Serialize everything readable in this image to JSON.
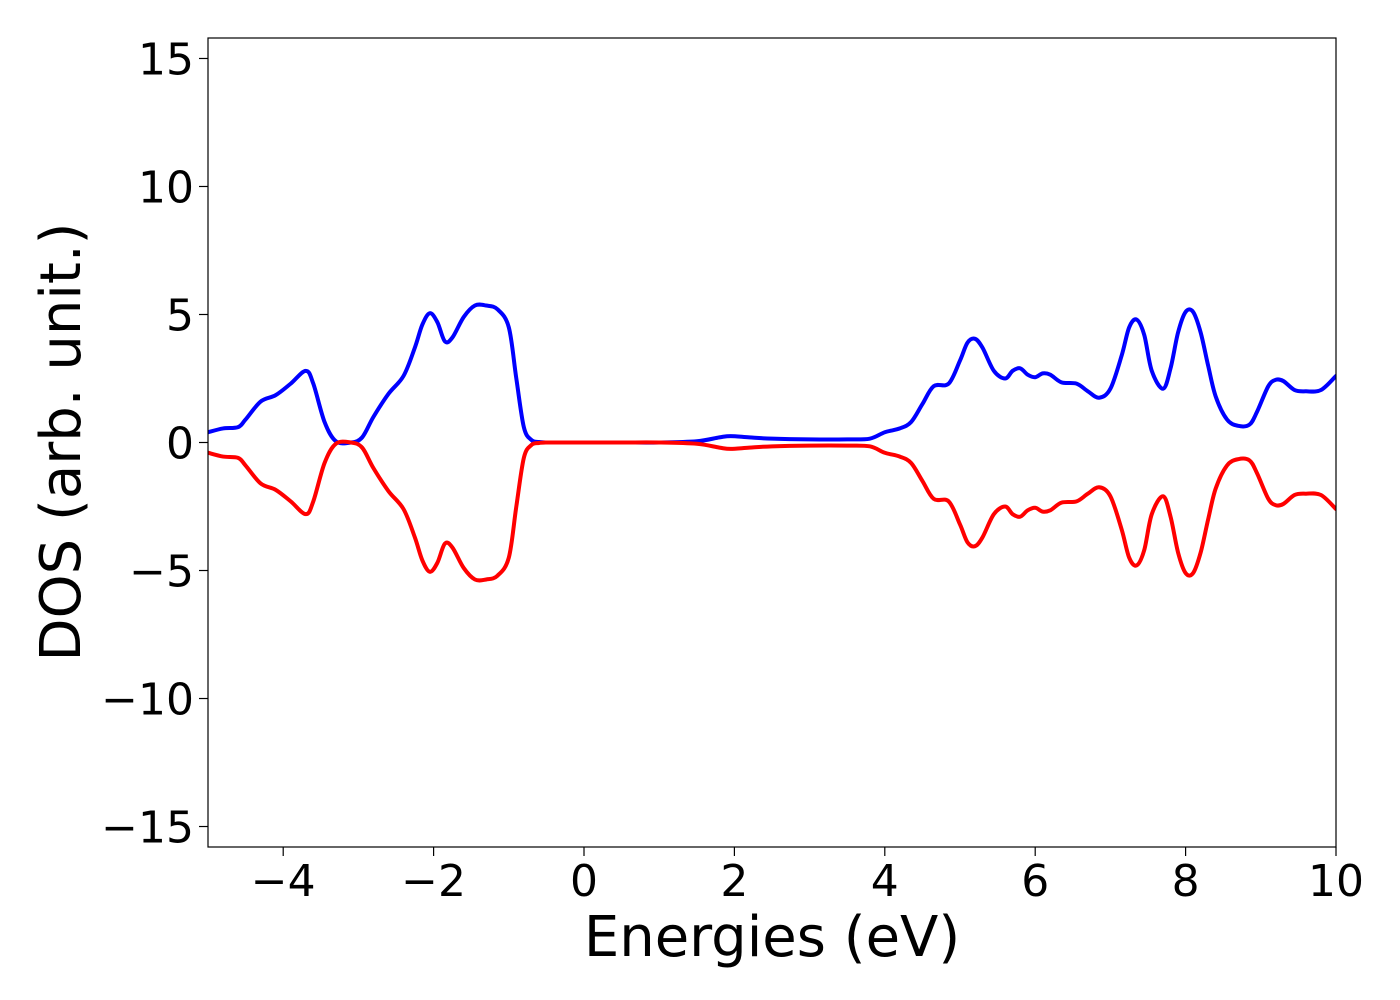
{
  "chart_data": {
    "type": "line",
    "title": "",
    "xlabel": "Energies (eV)",
    "ylabel": "DOS (arb. unit.)",
    "xlim": [
      -5,
      10
    ],
    "ylim": [
      -15.8,
      15.8
    ],
    "xticks": [
      -4,
      -2,
      0,
      2,
      4,
      6,
      8,
      10
    ],
    "xtick_labels": [
      "−4",
      "−2",
      "0",
      "2",
      "4",
      "6",
      "8",
      "10"
    ],
    "yticks": [
      15,
      10,
      5,
      0,
      -5,
      -10,
      -15
    ],
    "ytick_labels": [
      "15",
      "10",
      "5",
      "0",
      "−5",
      "−10",
      "−15"
    ],
    "grid": false,
    "legend": "none",
    "series": [
      {
        "color": "#0000ff",
        "x": [
          -5.0,
          -4.8,
          -4.6,
          -4.5,
          -4.3,
          -4.1,
          -3.9,
          -3.7,
          -3.6,
          -3.45,
          -3.3,
          -3.1,
          -2.95,
          -2.8,
          -2.6,
          -2.4,
          -2.25,
          -2.15,
          -2.05,
          -1.95,
          -1.85,
          -1.75,
          -1.6,
          -1.45,
          -1.3,
          -1.15,
          -1.0,
          -0.9,
          -0.8,
          -0.7,
          -0.6,
          -0.5,
          -0.3,
          0.0,
          0.5,
          1.0,
          1.5,
          1.8,
          1.95,
          2.2,
          2.5,
          3.0,
          3.5,
          3.8,
          4.0,
          4.2,
          4.35,
          4.5,
          4.65,
          4.85,
          5.0,
          5.1,
          5.2,
          5.3,
          5.45,
          5.6,
          5.7,
          5.8,
          5.9,
          6.0,
          6.1,
          6.2,
          6.35,
          6.55,
          6.7,
          6.85,
          7.0,
          7.15,
          7.25,
          7.35,
          7.45,
          7.55,
          7.7,
          7.8,
          7.9,
          8.0,
          8.1,
          8.2,
          8.3,
          8.4,
          8.55,
          8.7,
          8.85,
          8.95,
          9.1,
          9.2,
          9.3,
          9.45,
          9.6,
          9.8,
          10.0
        ],
        "y": [
          0.4,
          0.55,
          0.6,
          0.9,
          1.6,
          1.85,
          2.3,
          2.8,
          2.3,
          0.8,
          0.05,
          0.0,
          0.2,
          1.0,
          1.9,
          2.6,
          3.7,
          4.6,
          5.05,
          4.7,
          3.95,
          4.1,
          4.9,
          5.35,
          5.35,
          5.2,
          4.5,
          2.5,
          0.6,
          0.1,
          0.02,
          0.0,
          0.0,
          0.0,
          0.0,
          0.0,
          0.05,
          0.2,
          0.25,
          0.2,
          0.15,
          0.12,
          0.12,
          0.15,
          0.4,
          0.55,
          0.8,
          1.5,
          2.2,
          2.3,
          3.2,
          3.9,
          4.05,
          3.7,
          2.8,
          2.5,
          2.8,
          2.9,
          2.65,
          2.55,
          2.7,
          2.65,
          2.35,
          2.3,
          2.0,
          1.75,
          2.1,
          3.4,
          4.5,
          4.8,
          4.2,
          2.8,
          2.1,
          2.9,
          4.3,
          5.1,
          5.1,
          4.3,
          3.0,
          1.8,
          0.9,
          0.65,
          0.7,
          1.2,
          2.2,
          2.45,
          2.4,
          2.05,
          2.0,
          2.05,
          2.6
        ]
      },
      {
        "color": "#ff0000",
        "x": [
          -5.0,
          -4.8,
          -4.6,
          -4.5,
          -4.3,
          -4.1,
          -3.9,
          -3.7,
          -3.6,
          -3.45,
          -3.3,
          -3.1,
          -2.95,
          -2.8,
          -2.6,
          -2.4,
          -2.25,
          -2.15,
          -2.05,
          -1.95,
          -1.85,
          -1.75,
          -1.6,
          -1.45,
          -1.3,
          -1.15,
          -1.0,
          -0.9,
          -0.8,
          -0.7,
          -0.6,
          -0.5,
          -0.3,
          0.0,
          0.5,
          1.0,
          1.5,
          1.8,
          1.95,
          2.2,
          2.5,
          3.0,
          3.5,
          3.8,
          4.0,
          4.2,
          4.35,
          4.5,
          4.65,
          4.85,
          5.0,
          5.1,
          5.2,
          5.3,
          5.45,
          5.6,
          5.7,
          5.8,
          5.9,
          6.0,
          6.1,
          6.2,
          6.35,
          6.55,
          6.7,
          6.85,
          7.0,
          7.15,
          7.25,
          7.35,
          7.45,
          7.55,
          7.7,
          7.8,
          7.9,
          8.0,
          8.1,
          8.2,
          8.3,
          8.4,
          8.55,
          8.7,
          8.85,
          8.95,
          9.1,
          9.2,
          9.3,
          9.45,
          9.6,
          9.8,
          10.0
        ],
        "y": [
          -0.4,
          -0.55,
          -0.6,
          -0.9,
          -1.6,
          -1.85,
          -2.3,
          -2.8,
          -2.3,
          -0.8,
          -0.05,
          0.0,
          -0.2,
          -1.0,
          -1.9,
          -2.6,
          -3.7,
          -4.6,
          -5.05,
          -4.7,
          -3.95,
          -4.1,
          -4.9,
          -5.35,
          -5.35,
          -5.2,
          -4.5,
          -2.5,
          -0.6,
          -0.1,
          -0.02,
          0.0,
          0.0,
          0.0,
          0.0,
          0.0,
          -0.05,
          -0.2,
          -0.25,
          -0.2,
          -0.15,
          -0.12,
          -0.12,
          -0.15,
          -0.4,
          -0.55,
          -0.8,
          -1.5,
          -2.2,
          -2.3,
          -3.2,
          -3.9,
          -4.05,
          -3.7,
          -2.8,
          -2.5,
          -2.8,
          -2.9,
          -2.65,
          -2.55,
          -2.7,
          -2.65,
          -2.35,
          -2.3,
          -2.0,
          -1.75,
          -2.1,
          -3.4,
          -4.5,
          -4.8,
          -4.2,
          -2.8,
          -2.1,
          -2.9,
          -4.3,
          -5.1,
          -5.1,
          -4.3,
          -3.0,
          -1.8,
          -0.9,
          -0.65,
          -0.7,
          -1.2,
          -2.2,
          -2.45,
          -2.4,
          -2.05,
          -2.0,
          -2.05,
          -2.6
        ]
      }
    ]
  }
}
